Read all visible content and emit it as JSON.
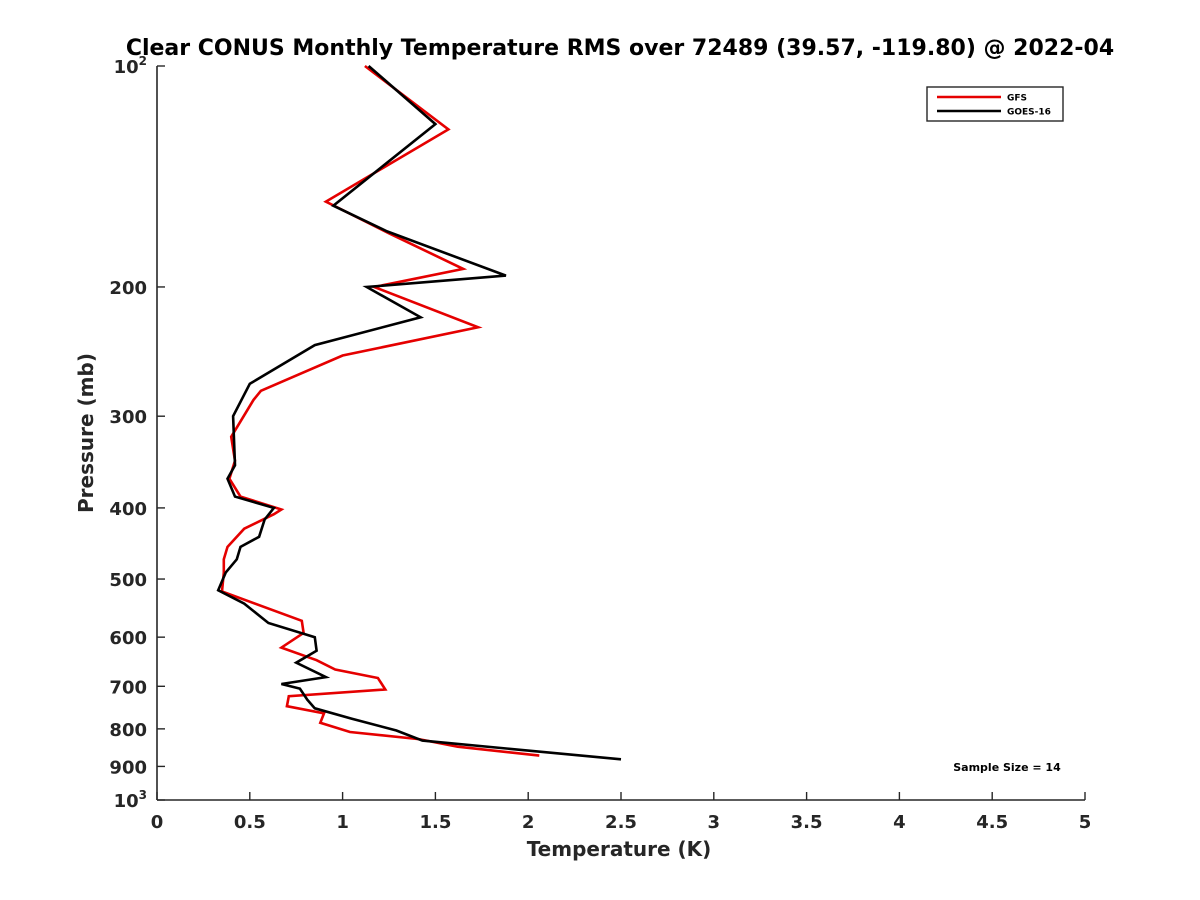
{
  "chart_data": {
    "type": "line",
    "title": "Clear CONUS Monthly Temperature RMS over 72489 (39.57, -119.80) @ 2022-04",
    "xlabel": "Temperature (K)",
    "ylabel": "Pressure (mb)",
    "xlim": [
      0,
      5
    ],
    "ylim": [
      100,
      1000
    ],
    "yscale": "log",
    "yreversed": true,
    "grid": false,
    "legend_position": "top-right",
    "x_ticks": [
      0,
      0.5,
      1,
      1.5,
      2,
      2.5,
      3,
      3.5,
      4,
      4.5,
      5
    ],
    "x_tick_labels": [
      "0",
      "0.5",
      "1",
      "1.5",
      "2",
      "2.5",
      "3",
      "3.5",
      "4",
      "4.5",
      "5"
    ],
    "y_ticks": [
      {
        "value": 100,
        "base": "10",
        "exp": "2"
      },
      {
        "value": 200,
        "label": "200"
      },
      {
        "value": 300,
        "label": "300"
      },
      {
        "value": 400,
        "label": "400"
      },
      {
        "value": 500,
        "label": "500"
      },
      {
        "value": 600,
        "label": "600"
      },
      {
        "value": 700,
        "label": "700"
      },
      {
        "value": 800,
        "label": "800"
      },
      {
        "value": 900,
        "label": "900"
      },
      {
        "value": 1000,
        "base": "10",
        "exp": "3"
      }
    ],
    "annotation": "Sample Size = 14",
    "series": [
      {
        "name": "GFS",
        "color": "#e50000",
        "points": [
          [
            1.12,
            100
          ],
          [
            1.57,
            122
          ],
          [
            0.91,
            153
          ],
          [
            1.25,
            169
          ],
          [
            1.65,
            189
          ],
          [
            1.17,
            200
          ],
          [
            1.73,
            227
          ],
          [
            1.0,
            248
          ],
          [
            0.56,
            277
          ],
          [
            0.52,
            285
          ],
          [
            0.4,
            320
          ],
          [
            0.42,
            345
          ],
          [
            0.39,
            365
          ],
          [
            0.45,
            386
          ],
          [
            0.67,
            402
          ],
          [
            0.63,
            408
          ],
          [
            0.47,
            427
          ],
          [
            0.38,
            452
          ],
          [
            0.36,
            470
          ],
          [
            0.36,
            490
          ],
          [
            0.35,
            520
          ],
          [
            0.78,
            570
          ],
          [
            0.79,
            592
          ],
          [
            0.67,
            620
          ],
          [
            0.86,
            645
          ],
          [
            0.96,
            664
          ],
          [
            1.19,
            682
          ],
          [
            1.23,
            707
          ],
          [
            0.71,
            722
          ],
          [
            0.7,
            745
          ],
          [
            0.9,
            762
          ],
          [
            0.88,
            785
          ],
          [
            1.04,
            808
          ],
          [
            1.41,
            826
          ],
          [
            1.62,
            846
          ],
          [
            2.06,
            870
          ]
        ]
      },
      {
        "name": "GOES-16",
        "color": "#000000",
        "points": [
          [
            1.14,
            100
          ],
          [
            1.5,
            120
          ],
          [
            0.95,
            155
          ],
          [
            1.24,
            168
          ],
          [
            1.88,
            193
          ],
          [
            1.13,
            200
          ],
          [
            1.42,
            220
          ],
          [
            0.85,
            240
          ],
          [
            0.5,
            271
          ],
          [
            0.41,
            300
          ],
          [
            0.42,
            350
          ],
          [
            0.38,
            365
          ],
          [
            0.42,
            386
          ],
          [
            0.63,
            400
          ],
          [
            0.58,
            415
          ],
          [
            0.55,
            438
          ],
          [
            0.45,
            452
          ],
          [
            0.43,
            470
          ],
          [
            0.37,
            490
          ],
          [
            0.33,
            518
          ],
          [
            0.47,
            540
          ],
          [
            0.6,
            574
          ],
          [
            0.85,
            600
          ],
          [
            0.86,
            626
          ],
          [
            0.75,
            650
          ],
          [
            0.91,
            680
          ],
          [
            0.67,
            695
          ],
          [
            0.77,
            705
          ],
          [
            0.81,
            730
          ],
          [
            0.85,
            750
          ],
          [
            1.05,
            775
          ],
          [
            1.29,
            804
          ],
          [
            1.43,
            830
          ],
          [
            2.5,
            880
          ]
        ]
      }
    ]
  }
}
